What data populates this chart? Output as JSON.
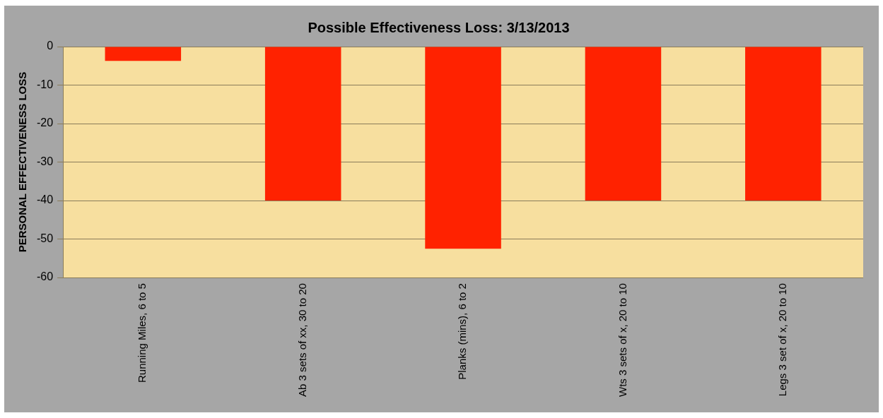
{
  "chart_data": {
    "type": "bar",
    "title": "Possible Effectiveness Loss: 3/13/2013",
    "ylabel": "PERSONAL EFFECTIVENESS LOSS",
    "categories": [
      "Running Miles, 6 to 5",
      "Ab 3 sets of xx, 30 to 20",
      "Planks (mins), 6 to 2",
      "Wts 3 sets of x, 20 to 10",
      "Legs 3 set of x, 20 to 10"
    ],
    "values": [
      -3.7,
      -40,
      -52.5,
      -40,
      -40
    ],
    "color": "#ff2200",
    "ylim": [
      -60,
      0
    ],
    "yticks": [
      -60,
      -50,
      -40,
      -30,
      -20,
      -10,
      0
    ],
    "grid": "y",
    "legend": false
  }
}
